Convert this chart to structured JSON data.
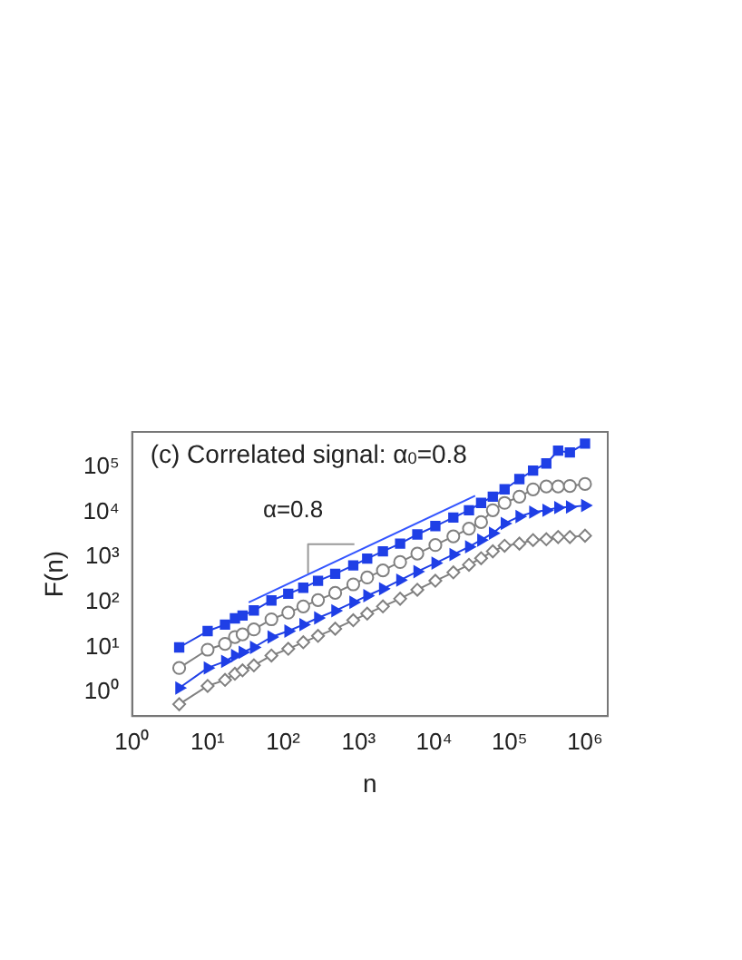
{
  "chart_data": {
    "type": "line",
    "title": "(c) Correlated signal: α$_{0}$=0.8",
    "xlabel": "n",
    "ylabel": "F(n)",
    "log": "xy",
    "grid": false,
    "legend": false,
    "x": [
      4.2,
      10,
      17,
      23,
      29,
      41,
      70,
      117,
      185,
      290,
      490,
      850,
      1300,
      2100,
      3550,
      6000,
      10400,
      18000,
      29000,
      42000,
      60000,
      86000,
      135000,
      205000,
      307000,
      440000,
      630000,
      1000000
    ],
    "xlim": [
      1,
      2000000
    ],
    "ylim": [
      0.3,
      600000
    ],
    "xticks": [
      {
        "value": 1,
        "label": "10⁰"
      },
      {
        "value": 10,
        "label": "10¹"
      },
      {
        "value": 100,
        "label": "10²"
      },
      {
        "value": 1000,
        "label": "10³"
      },
      {
        "value": 10000,
        "label": "10⁴"
      },
      {
        "value": 100000,
        "label": "10⁵"
      },
      {
        "value": 1000000,
        "label": "10⁶"
      }
    ],
    "yticks": [
      {
        "value": 1,
        "label": "10⁰"
      },
      {
        "value": 10,
        "label": "10¹"
      },
      {
        "value": 100,
        "label": "10²"
      },
      {
        "value": 1000,
        "label": "10³"
      },
      {
        "value": 10000,
        "label": "10⁴"
      },
      {
        "value": 100000,
        "label": "10⁵"
      }
    ],
    "series": [
      {
        "color": "#1f3fe6",
        "marker": "square",
        "values": [
          10,
          23,
          32,
          44,
          51,
          66,
          110,
          155,
          210,
          300,
          430,
          660,
          930,
          1350,
          2000,
          3200,
          4900,
          7600,
          11000,
          16000,
          22000,
          32000,
          54000,
          83000,
          120000,
          230000,
          210000,
          330000
        ]
      },
      {
        "color": "#808080",
        "marker": "circle",
        "values": [
          3.5,
          8.9,
          12,
          17,
          19.5,
          25,
          42,
          59,
          81,
          112,
          162,
          250,
          355,
          510,
          780,
          1200,
          1860,
          2900,
          4300,
          6000,
          11000,
          16000,
          22000,
          32000,
          37000,
          37000,
          38000,
          42000
        ]
      },
      {
        "color": "#1f3fe6",
        "marker": "triangle",
        "values": [
          1.26,
          3.5,
          4.9,
          6.6,
          7.8,
          10,
          17,
          23,
          32,
          45,
          65,
          100,
          140,
          200,
          310,
          480,
          740,
          1150,
          1700,
          2400,
          3400,
          5600,
          8000,
          10000,
          11000,
          12600,
          13000,
          14000
        ]
      },
      {
        "color": "#808080",
        "marker": "diamond",
        "values": [
          0.55,
          1.4,
          1.9,
          2.6,
          3.1,
          4,
          6.6,
          9.3,
          13,
          18,
          26,
          40,
          56,
          81,
          120,
          190,
          300,
          460,
          680,
          950,
          1350,
          1800,
          2000,
          2400,
          2500,
          2800,
          2800,
          3000
        ]
      },
      {
        "type": "line",
        "color": "#3355ff",
        "marker": "none",
        "x": [
          35,
          35000
        ],
        "values": [
          100,
          23000
        ]
      },
      {
        "type": "line",
        "color": "#999999",
        "marker": "none",
        "x": [
          880,
          214,
          214
        ],
        "values": [
          1950,
          1950,
          440
        ]
      }
    ],
    "annotations": [
      "α=0.8"
    ]
  }
}
